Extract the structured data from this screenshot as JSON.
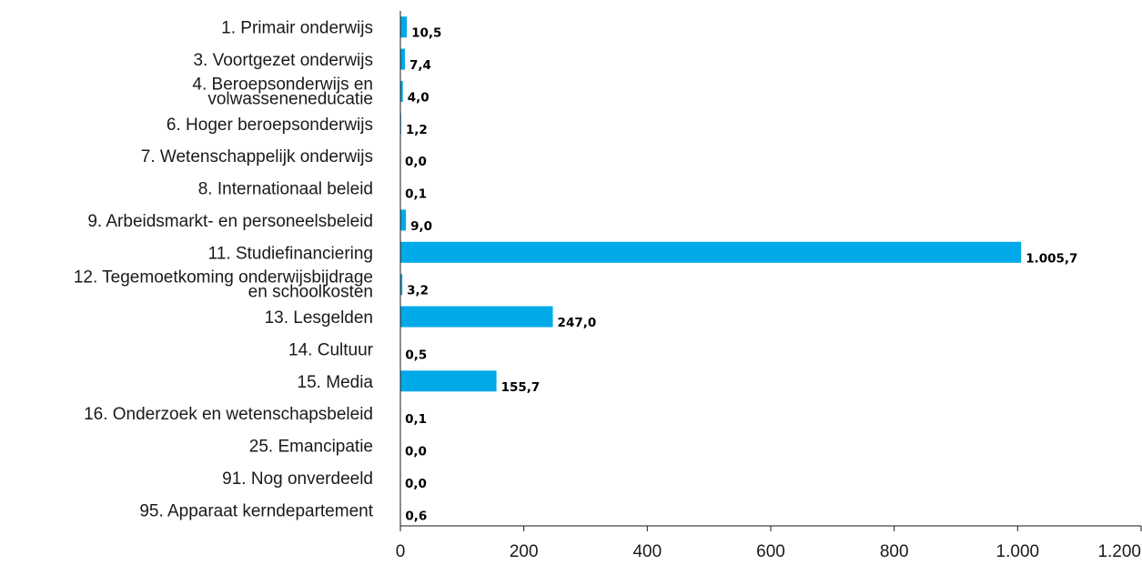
{
  "chart_data": {
    "type": "bar",
    "orientation": "horizontal",
    "categories": [
      [
        "1. Primair onderwijs"
      ],
      [
        "3. Voortgezet onderwijs"
      ],
      [
        "4. Beroepsonderwijs en",
        "volwasseneneducatie"
      ],
      [
        "6. Hoger beroepsonderwijs"
      ],
      [
        "7. Wetenschappelijk onderwijs"
      ],
      [
        "8. Internationaal beleid"
      ],
      [
        "9. Arbeidsmarkt- en personeelsbeleid"
      ],
      [
        "11. Studiefinanciering"
      ],
      [
        "12. Tegemoetkoming onderwijsbijdrage",
        "en schoolkosten"
      ],
      [
        "13. Lesgelden"
      ],
      [
        "14. Cultuur"
      ],
      [
        "15. Media"
      ],
      [
        "16. Onderzoek en wetenschapsbeleid"
      ],
      [
        "25. Emancipatie"
      ],
      [
        "91. Nog onverdeeld"
      ],
      [
        "95. Apparaat kerndepartement"
      ]
    ],
    "values": [
      10.5,
      7.4,
      4.0,
      1.2,
      0.0,
      0.1,
      9.0,
      1005.7,
      3.2,
      247.0,
      0.5,
      155.7,
      0.1,
      0.0,
      0.0,
      0.6
    ],
    "value_labels": [
      "10,5",
      "7,4",
      "4,0",
      "1,2",
      "0,0",
      "0,1",
      "9,0",
      "1.005,7",
      "3,2",
      "247,0",
      "0,5",
      "155,7",
      "0,1",
      "0,0",
      "0,0",
      "0,6"
    ],
    "xlim": [
      0,
      1200
    ],
    "xticks": [
      0,
      200,
      400,
      600,
      800,
      1000,
      1200
    ],
    "xtick_labels": [
      "0",
      "200",
      "400",
      "600",
      "800",
      "1.000",
      "1.200"
    ],
    "grid": false,
    "bar_color": "#00A9E8"
  }
}
